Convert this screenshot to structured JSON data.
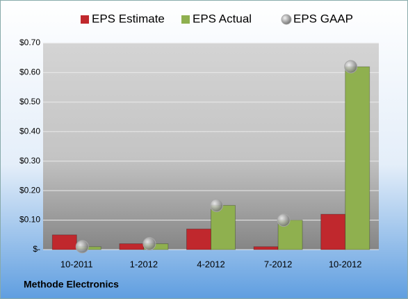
{
  "chart_data": {
    "type": "bar",
    "categories": [
      "10-2011",
      "1-2012",
      "4-2012",
      "7-2012",
      "10-2012"
    ],
    "series": [
      {
        "name": "EPS Estimate",
        "type": "bar",
        "color": "#c0282d",
        "values": [
          0.05,
          0.02,
          0.07,
          0.01,
          0.12
        ]
      },
      {
        "name": "EPS Actual",
        "type": "bar",
        "color": "#8fb04f",
        "values": [
          0.01,
          0.02,
          0.15,
          0.1,
          0.62
        ]
      },
      {
        "name": "EPS GAAP",
        "type": "scatter",
        "color": "#a6a6a6",
        "values": [
          0.01,
          0.02,
          0.15,
          0.1,
          0.62
        ]
      }
    ],
    "ylim": [
      0,
      0.7
    ],
    "yticks": [
      {
        "value": 0,
        "label": "$-"
      },
      {
        "value": 0.1,
        "label": "$0.10"
      },
      {
        "value": 0.2,
        "label": "$0.20"
      },
      {
        "value": 0.3,
        "label": "$0.30"
      },
      {
        "value": 0.4,
        "label": "$0.40"
      },
      {
        "value": 0.5,
        "label": "$0.50"
      },
      {
        "value": 0.6,
        "label": "$0.60"
      },
      {
        "value": 0.7,
        "label": "$0.70"
      }
    ],
    "grid": true,
    "legend": "top",
    "footer": "Methode Electronics"
  }
}
